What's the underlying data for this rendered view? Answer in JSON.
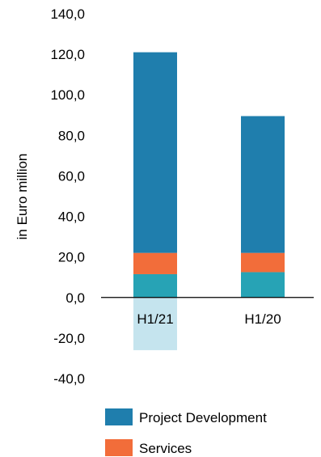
{
  "chart_data": {
    "type": "bar",
    "stacked": true,
    "categories": [
      "H1/21",
      "H1/20"
    ],
    "ylabel": "in Euro million",
    "ylim": [
      -40,
      140
    ],
    "yticks": [
      140,
      120,
      100,
      80,
      60,
      40,
      20,
      0,
      -20,
      -40
    ],
    "ytick_labels": [
      "140,0",
      "120,0",
      "100,0",
      "80,0",
      "60,0",
      "40,0",
      "20,0",
      "0,0",
      "-20,0",
      "-40,0"
    ],
    "grid": false,
    "legend_position": "bottom",
    "series": [
      {
        "key": "unlabeled_negative",
        "values": [
          -26,
          0
        ],
        "color": "#c5e4ee",
        "in_legend": false
      },
      {
        "key": "unlabeled_teal",
        "values": [
          11.5,
          12.5
        ],
        "color": "#27a3b5",
        "in_legend": false
      },
      {
        "name": "Services",
        "values": [
          10.5,
          9.5
        ],
        "color": "#f26d3a",
        "in_legend": true
      },
      {
        "name": "Project Development",
        "values": [
          99,
          67.5
        ],
        "color": "#1f7ead",
        "in_legend": true
      }
    ],
    "legend": [
      {
        "label": "Project Development",
        "color": "#1f7ead"
      },
      {
        "label": "Services",
        "color": "#f26d3a"
      }
    ]
  }
}
